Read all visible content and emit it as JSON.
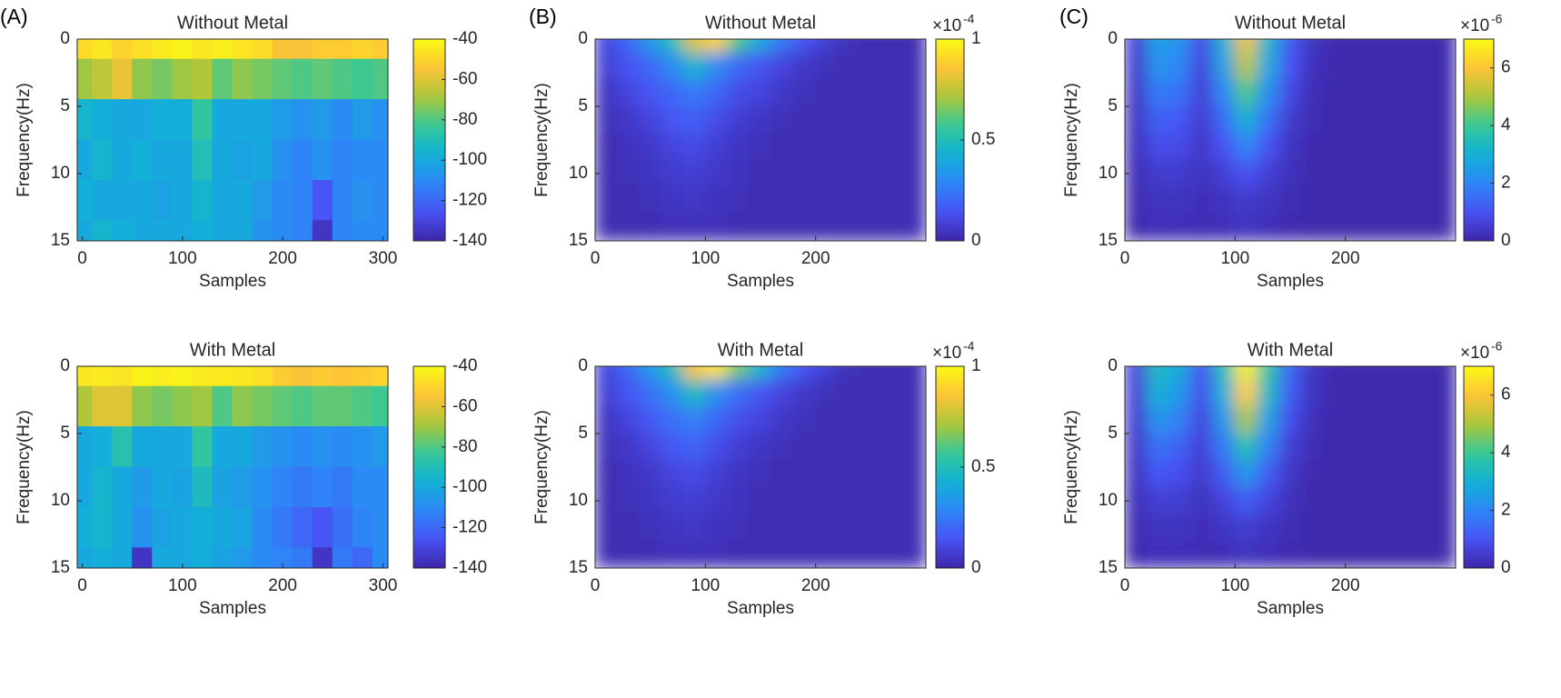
{
  "chart_data": [
    {
      "type": "heatmap",
      "panel_label": "(A)",
      "title": "Without Metal",
      "xlabel": "Samples",
      "ylabel": "Frequency(Hz)",
      "x": [
        0,
        20,
        40,
        60,
        80,
        100,
        120,
        140,
        160,
        180,
        200,
        220,
        240,
        260,
        280,
        300
      ],
      "y": [
        0,
        3,
        6,
        9,
        12,
        15
      ],
      "values": [
        [
          -48,
          -45,
          -50,
          -47,
          -44,
          -42,
          -45,
          -43,
          -46,
          -48,
          -55,
          -55,
          -52,
          -52,
          -50,
          -52
        ],
        [
          -70,
          -65,
          -58,
          -72,
          -75,
          -70,
          -68,
          -78,
          -72,
          -75,
          -78,
          -80,
          -78,
          -80,
          -82,
          -80
        ],
        [
          -95,
          -98,
          -100,
          -100,
          -98,
          -98,
          -85,
          -100,
          -100,
          -100,
          -105,
          -108,
          -105,
          -110,
          -105,
          -108
        ],
        [
          -100,
          -95,
          -100,
          -98,
          -100,
          -100,
          -90,
          -100,
          -102,
          -100,
          -108,
          -112,
          -108,
          -112,
          -110,
          -110
        ],
        [
          -98,
          -100,
          -100,
          -100,
          -102,
          -100,
          -95,
          -100,
          -100,
          -105,
          -110,
          -112,
          -125,
          -112,
          -108,
          -110
        ],
        [
          -100,
          -95,
          -98,
          -100,
          -100,
          -100,
          -98,
          -100,
          -100,
          -108,
          -110,
          -112,
          -135,
          -112,
          -110,
          -110
        ]
      ],
      "xlim": [
        -5,
        305
      ],
      "ylim": [
        15,
        0
      ],
      "xticks": [
        0,
        100,
        200,
        300
      ],
      "yticks": [
        0,
        5,
        10,
        15
      ],
      "colormap": "parula",
      "smooth": false,
      "clim": [
        -140,
        -40
      ],
      "cticks": [
        -140,
        -120,
        -100,
        -80,
        -60,
        -40
      ]
    },
    {
      "type": "heatmap",
      "panel_label": "(B)",
      "title": "Without Metal",
      "xlabel": "Samples",
      "ylabel": "Frequency(Hz)",
      "x": [
        10,
        30,
        50,
        70,
        90,
        110,
        130,
        150,
        170,
        190,
        210,
        230,
        250,
        270,
        290
      ],
      "y": [
        0,
        2,
        4,
        6,
        8,
        10,
        12,
        14
      ],
      "values": [
        [
          0.1,
          0.2,
          0.35,
          0.5,
          0.8,
          0.9,
          0.6,
          0.4,
          0.25,
          0.15,
          0.08,
          0.03,
          0.02,
          0.02,
          0.02
        ],
        [
          0.08,
          0.15,
          0.2,
          0.3,
          0.45,
          0.3,
          0.2,
          0.15,
          0.1,
          0.06,
          0.03,
          0.02,
          0.02,
          0.02,
          0.02
        ],
        [
          0.05,
          0.1,
          0.15,
          0.2,
          0.25,
          0.2,
          0.12,
          0.1,
          0.06,
          0.03,
          0.02,
          0.02,
          0.02,
          0.02,
          0.02
        ],
        [
          0.03,
          0.06,
          0.1,
          0.15,
          0.18,
          0.12,
          0.08,
          0.05,
          0.03,
          0.02,
          0.02,
          0.02,
          0.02,
          0.02,
          0.02
        ],
        [
          0.02,
          0.04,
          0.06,
          0.1,
          0.12,
          0.08,
          0.05,
          0.03,
          0.02,
          0.02,
          0.02,
          0.02,
          0.02,
          0.02,
          0.02
        ],
        [
          0.02,
          0.03,
          0.05,
          0.07,
          0.08,
          0.06,
          0.04,
          0.02,
          0.02,
          0.02,
          0.02,
          0.02,
          0.02,
          0.02,
          0.02
        ],
        [
          0.02,
          0.02,
          0.03,
          0.05,
          0.06,
          0.04,
          0.03,
          0.02,
          0.02,
          0.02,
          0.02,
          0.02,
          0.02,
          0.02,
          0.02
        ],
        [
          0.02,
          0.02,
          0.02,
          0.03,
          0.03,
          0.03,
          0.02,
          0.02,
          0.02,
          0.02,
          0.02,
          0.02,
          0.02,
          0.02,
          0.02
        ]
      ],
      "xlim": [
        0,
        300
      ],
      "ylim": [
        15,
        0
      ],
      "xticks": [
        0,
        100,
        200
      ],
      "yticks": [
        0,
        5,
        10,
        15
      ],
      "colormap": "parula",
      "smooth": true,
      "clim": [
        0,
        1
      ],
      "cticks": [
        0,
        0.5,
        1
      ],
      "colorbar_multiplier": "×10",
      "colorbar_exponent": "-4"
    },
    {
      "type": "heatmap",
      "panel_label": "(C)",
      "title": "Without Metal",
      "xlabel": "Samples",
      "ylabel": "Frequency(Hz)",
      "x": [
        10,
        30,
        50,
        70,
        90,
        110,
        130,
        150,
        170,
        190,
        210,
        230,
        250,
        270,
        290
      ],
      "y": [
        0,
        2,
        4,
        6,
        8,
        10,
        12,
        14
      ],
      "values": [
        [
          0.6,
          2.6,
          2.3,
          0.8,
          3.0,
          5.8,
          3.2,
          1.2,
          0.3,
          0.1,
          0.05,
          0.05,
          0.05,
          0.05,
          0.05
        ],
        [
          0.5,
          2.3,
          2.0,
          0.7,
          2.6,
          5.2,
          2.8,
          1.0,
          0.25,
          0.08,
          0.05,
          0.05,
          0.05,
          0.05,
          0.05
        ],
        [
          0.4,
          1.8,
          1.6,
          0.6,
          2.0,
          4.2,
          2.2,
          0.8,
          0.2,
          0.06,
          0.05,
          0.05,
          0.05,
          0.05,
          0.05
        ],
        [
          0.3,
          1.3,
          1.1,
          0.5,
          1.5,
          3.0,
          1.6,
          0.5,
          0.15,
          0.05,
          0.05,
          0.05,
          0.05,
          0.05,
          0.05
        ],
        [
          0.25,
          0.9,
          0.8,
          0.4,
          1.0,
          2.0,
          1.0,
          0.35,
          0.1,
          0.05,
          0.05,
          0.05,
          0.05,
          0.05,
          0.05
        ],
        [
          0.2,
          0.5,
          0.5,
          0.3,
          0.6,
          1.0,
          0.6,
          0.25,
          0.08,
          0.05,
          0.05,
          0.05,
          0.05,
          0.05,
          0.05
        ],
        [
          0.15,
          0.3,
          0.3,
          0.2,
          0.3,
          0.5,
          0.3,
          0.15,
          0.06,
          0.05,
          0.05,
          0.05,
          0.05,
          0.05,
          0.05
        ],
        [
          0.1,
          0.2,
          0.2,
          0.15,
          0.2,
          0.3,
          0.2,
          0.1,
          0.05,
          0.05,
          0.05,
          0.05,
          0.05,
          0.05,
          0.05
        ]
      ],
      "xlim": [
        0,
        300
      ],
      "ylim": [
        15,
        0
      ],
      "xticks": [
        0,
        100,
        200
      ],
      "yticks": [
        0,
        5,
        10,
        15
      ],
      "colormap": "parula",
      "smooth": true,
      "clim": [
        0,
        7
      ],
      "cticks": [
        0,
        2,
        4,
        6
      ],
      "colorbar_multiplier": "×10",
      "colorbar_exponent": "-6"
    },
    {
      "type": "heatmap",
      "title": "With Metal",
      "xlabel": "Samples",
      "ylabel": "Frequency(Hz)",
      "x": [
        0,
        20,
        40,
        60,
        80,
        100,
        120,
        140,
        160,
        180,
        200,
        220,
        240,
        260,
        280,
        300
      ],
      "y": [
        0,
        3,
        6,
        9,
        12,
        15
      ],
      "values": [
        [
          -45,
          -44,
          -46,
          -42,
          -43,
          -42,
          -44,
          -44,
          -45,
          -47,
          -52,
          -55,
          -52,
          -54,
          -52,
          -50
        ],
        [
          -68,
          -60,
          -60,
          -72,
          -75,
          -72,
          -70,
          -80,
          -72,
          -75,
          -78,
          -80,
          -78,
          -78,
          -80,
          -82
        ],
        [
          -100,
          -98,
          -88,
          -100,
          -100,
          -100,
          -85,
          -100,
          -100,
          -105,
          -108,
          -110,
          -108,
          -110,
          -108,
          -105
        ],
        [
          -100,
          -95,
          -100,
          -105,
          -100,
          -102,
          -92,
          -102,
          -105,
          -108,
          -112,
          -115,
          -112,
          -115,
          -110,
          -110
        ],
        [
          -98,
          -95,
          -100,
          -108,
          -102,
          -100,
          -98,
          -100,
          -102,
          -110,
          -115,
          -120,
          -125,
          -118,
          -112,
          -110
        ],
        [
          -100,
          -98,
          -100,
          -135,
          -100,
          -100,
          -98,
          -102,
          -105,
          -110,
          -112,
          -115,
          -135,
          -115,
          -120,
          -110
        ]
      ],
      "xlim": [
        -5,
        305
      ],
      "ylim": [
        15,
        0
      ],
      "xticks": [
        0,
        100,
        200,
        300
      ],
      "yticks": [
        0,
        5,
        10,
        15
      ],
      "colormap": "parula",
      "smooth": false,
      "clim": [
        -140,
        -40
      ],
      "cticks": [
        -140,
        -120,
        -100,
        -80,
        -60,
        -40
      ]
    },
    {
      "type": "heatmap",
      "title": "With Metal",
      "xlabel": "Samples",
      "ylabel": "Frequency(Hz)",
      "x": [
        10,
        30,
        50,
        70,
        90,
        110,
        130,
        150,
        170,
        190,
        210,
        230,
        250,
        270,
        290
      ],
      "y": [
        0,
        2,
        4,
        6,
        8,
        10,
        12,
        14
      ],
      "values": [
        [
          0.1,
          0.2,
          0.35,
          0.5,
          0.85,
          0.95,
          0.65,
          0.45,
          0.25,
          0.15,
          0.08,
          0.03,
          0.02,
          0.02,
          0.02
        ],
        [
          0.08,
          0.15,
          0.22,
          0.32,
          0.48,
          0.32,
          0.22,
          0.15,
          0.1,
          0.06,
          0.03,
          0.02,
          0.02,
          0.02,
          0.02
        ],
        [
          0.05,
          0.1,
          0.16,
          0.22,
          0.27,
          0.2,
          0.13,
          0.1,
          0.06,
          0.03,
          0.02,
          0.02,
          0.02,
          0.02,
          0.02
        ],
        [
          0.03,
          0.06,
          0.1,
          0.16,
          0.19,
          0.13,
          0.08,
          0.05,
          0.03,
          0.02,
          0.02,
          0.02,
          0.02,
          0.02,
          0.02
        ],
        [
          0.02,
          0.04,
          0.06,
          0.1,
          0.12,
          0.08,
          0.05,
          0.03,
          0.02,
          0.02,
          0.02,
          0.02,
          0.02,
          0.02,
          0.02
        ],
        [
          0.02,
          0.03,
          0.05,
          0.07,
          0.08,
          0.06,
          0.04,
          0.02,
          0.02,
          0.02,
          0.02,
          0.02,
          0.02,
          0.02,
          0.02
        ],
        [
          0.02,
          0.02,
          0.03,
          0.05,
          0.06,
          0.04,
          0.03,
          0.02,
          0.02,
          0.02,
          0.02,
          0.02,
          0.02,
          0.02,
          0.02
        ],
        [
          0.02,
          0.02,
          0.02,
          0.03,
          0.03,
          0.03,
          0.02,
          0.02,
          0.02,
          0.02,
          0.02,
          0.02,
          0.02,
          0.02,
          0.02
        ]
      ],
      "xlim": [
        0,
        300
      ],
      "ylim": [
        15,
        0
      ],
      "xticks": [
        0,
        100,
        200
      ],
      "yticks": [
        0,
        5,
        10,
        15
      ],
      "colormap": "parula",
      "smooth": true,
      "clim": [
        0,
        1
      ],
      "cticks": [
        0,
        0.5,
        1
      ],
      "colorbar_multiplier": "×10",
      "colorbar_exponent": "-4"
    },
    {
      "type": "heatmap",
      "title": "With Metal",
      "xlabel": "Samples",
      "ylabel": "Frequency(Hz)",
      "x": [
        10,
        30,
        50,
        70,
        90,
        110,
        130,
        150,
        170,
        190,
        210,
        230,
        250,
        270,
        290
      ],
      "y": [
        0,
        2,
        4,
        6,
        8,
        10,
        12,
        14
      ],
      "values": [
        [
          0.7,
          3.4,
          2.8,
          1.0,
          3.5,
          6.8,
          3.8,
          1.4,
          0.35,
          0.1,
          0.05,
          0.05,
          0.05,
          0.05,
          0.05
        ],
        [
          0.6,
          3.0,
          2.4,
          0.9,
          3.0,
          6.2,
          3.3,
          1.2,
          0.3,
          0.08,
          0.05,
          0.05,
          0.05,
          0.05,
          0.05
        ],
        [
          0.5,
          2.3,
          1.9,
          0.7,
          2.4,
          5.0,
          2.6,
          0.9,
          0.22,
          0.06,
          0.05,
          0.05,
          0.05,
          0.05,
          0.05
        ],
        [
          0.4,
          1.6,
          1.3,
          0.6,
          1.8,
          3.6,
          1.9,
          0.6,
          0.16,
          0.05,
          0.05,
          0.05,
          0.05,
          0.05,
          0.05
        ],
        [
          0.3,
          1.1,
          0.9,
          0.45,
          1.2,
          2.4,
          1.2,
          0.4,
          0.1,
          0.05,
          0.05,
          0.05,
          0.05,
          0.05,
          0.05
        ],
        [
          0.22,
          0.6,
          0.55,
          0.3,
          0.7,
          1.2,
          0.7,
          0.25,
          0.08,
          0.05,
          0.05,
          0.05,
          0.05,
          0.05,
          0.05
        ],
        [
          0.15,
          0.3,
          0.3,
          0.2,
          0.35,
          0.55,
          0.35,
          0.15,
          0.06,
          0.05,
          0.05,
          0.05,
          0.05,
          0.05,
          0.05
        ],
        [
          0.1,
          0.2,
          0.2,
          0.15,
          0.2,
          0.3,
          0.2,
          0.1,
          0.05,
          0.05,
          0.05,
          0.05,
          0.05,
          0.05,
          0.05
        ]
      ],
      "xlim": [
        0,
        300
      ],
      "ylim": [
        15,
        0
      ],
      "xticks": [
        0,
        100,
        200
      ],
      "yticks": [
        0,
        5,
        10,
        15
      ],
      "colormap": "parula",
      "smooth": true,
      "clim": [
        0,
        7
      ],
      "cticks": [
        0,
        2,
        4,
        6
      ],
      "colorbar_multiplier": "×10",
      "colorbar_exponent": "-6"
    }
  ]
}
